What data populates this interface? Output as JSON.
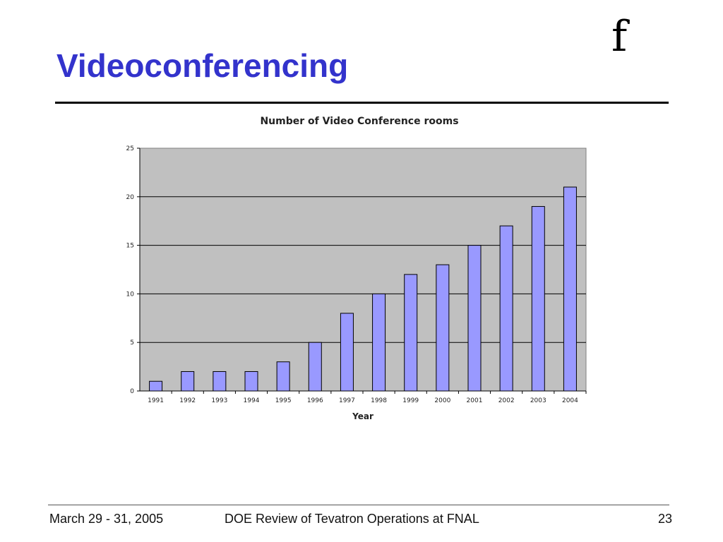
{
  "slide": {
    "title": "Videoconferencing",
    "logo": "f"
  },
  "footer": {
    "date": "March 29 - 31, 2005",
    "event": "DOE Review of Tevatron Operations at FNAL",
    "page": "23"
  },
  "chart_data": {
    "type": "bar",
    "title": "Number of Video Conference rooms",
    "xlabel": "Year",
    "ylabel": "",
    "categories": [
      "1991",
      "1992",
      "1993",
      "1994",
      "1995",
      "1996",
      "1997",
      "1998",
      "1999",
      "2000",
      "2001",
      "2002",
      "2003",
      "2004"
    ],
    "values": [
      1,
      2,
      2,
      2,
      3,
      5,
      8,
      10,
      12,
      13,
      15,
      17,
      19,
      21
    ],
    "ylim": [
      0,
      25
    ],
    "yticks": [
      0,
      5,
      10,
      15,
      20,
      25
    ],
    "grid": true,
    "legend": "none",
    "colors": {
      "bar_fill": "#9999ff",
      "bar_stroke": "#000000",
      "plot_background": "#c0c0c0"
    }
  }
}
